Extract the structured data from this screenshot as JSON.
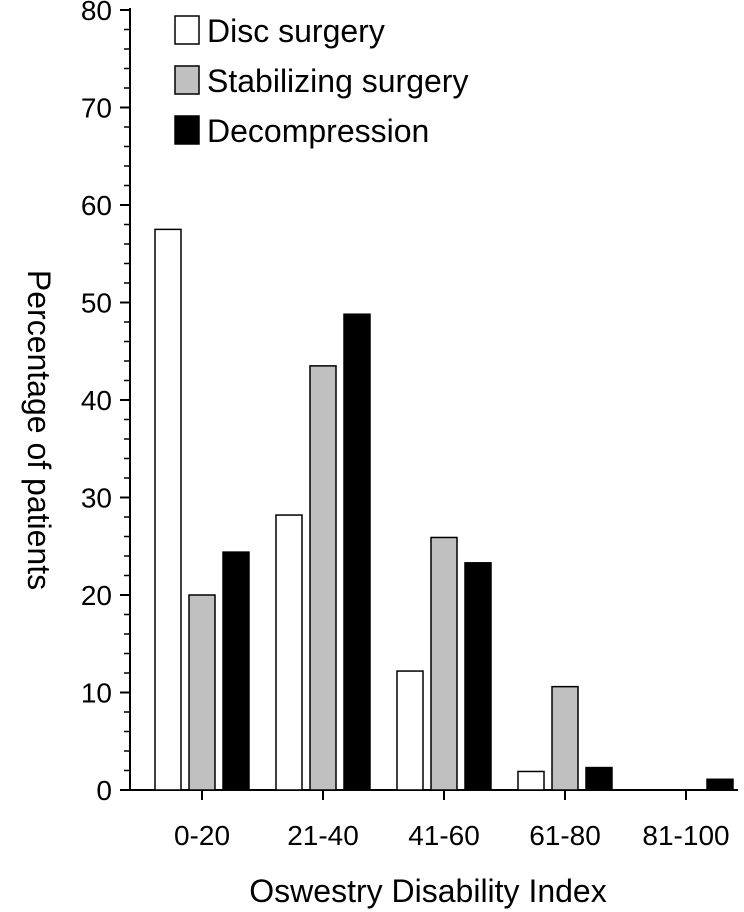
{
  "chart_data": {
    "type": "bar",
    "title": "",
    "xlabel": "Oswestry Disability Index",
    "ylabel": "Percentage of patients",
    "ylim": [
      0,
      80
    ],
    "yticks": [
      0,
      10,
      20,
      30,
      40,
      50,
      60,
      70,
      80
    ],
    "categories": [
      "0-20",
      "21-40",
      "41-60",
      "61-80",
      "81-100"
    ],
    "series": [
      {
        "name": "Disc surgery",
        "color": "#ffffff",
        "values": [
          57.5,
          28.2,
          12.2,
          1.9,
          0
        ]
      },
      {
        "name": "Stabilizing surgery",
        "color": "#c0c0c0",
        "values": [
          20.0,
          43.5,
          25.9,
          10.6,
          0
        ]
      },
      {
        "name": "Decompression",
        "color": "#000000",
        "values": [
          24.4,
          48.8,
          23.3,
          2.3,
          1.1
        ]
      }
    ],
    "legend": "top-left",
    "grid": false
  }
}
